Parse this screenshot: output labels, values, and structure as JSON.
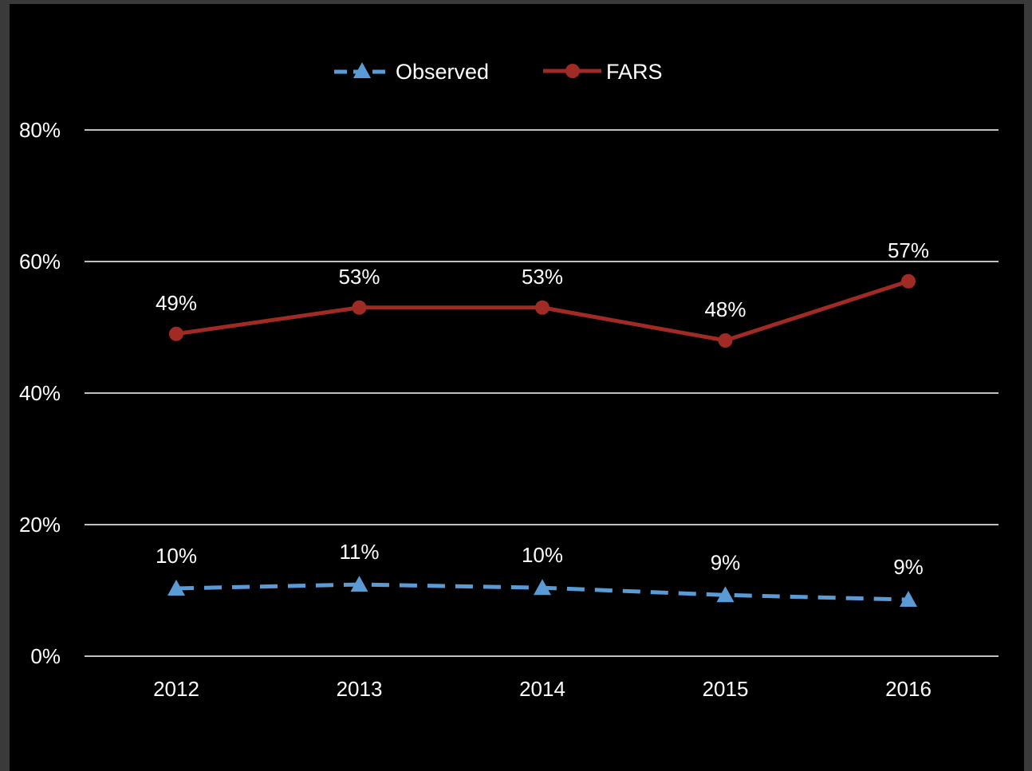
{
  "chart_data": {
    "type": "line",
    "title": "",
    "xlabel": "",
    "ylabel": "",
    "categories": [
      "2012",
      "2013",
      "2014",
      "2015",
      "2016"
    ],
    "ylim": [
      0,
      80
    ],
    "y_ticks": [
      0,
      20,
      40,
      60,
      80
    ],
    "y_tick_labels": [
      "0%",
      "20%",
      "40%",
      "60%",
      "80%"
    ],
    "grid": "horizontal",
    "legend_position": "top-center",
    "background_color": "#000000",
    "frame_color": "#3a3a3a",
    "gridline_color": "#ffffff",
    "series": [
      {
        "name": "Observed",
        "values": [
          10.3,
          10.9,
          10.4,
          9.3,
          8.6
        ],
        "labels": [
          "10%",
          "11%",
          "10%",
          "9%",
          "9%"
        ],
        "color": "#5b9bd5",
        "line_style": "dashed",
        "marker": "triangle"
      },
      {
        "name": "FARS",
        "values": [
          49,
          53,
          53,
          48,
          57
        ],
        "labels": [
          "49%",
          "53%",
          "53%",
          "48%",
          "57%"
        ],
        "color": "#a02b24",
        "line_style": "solid",
        "marker": "circle"
      }
    ]
  }
}
